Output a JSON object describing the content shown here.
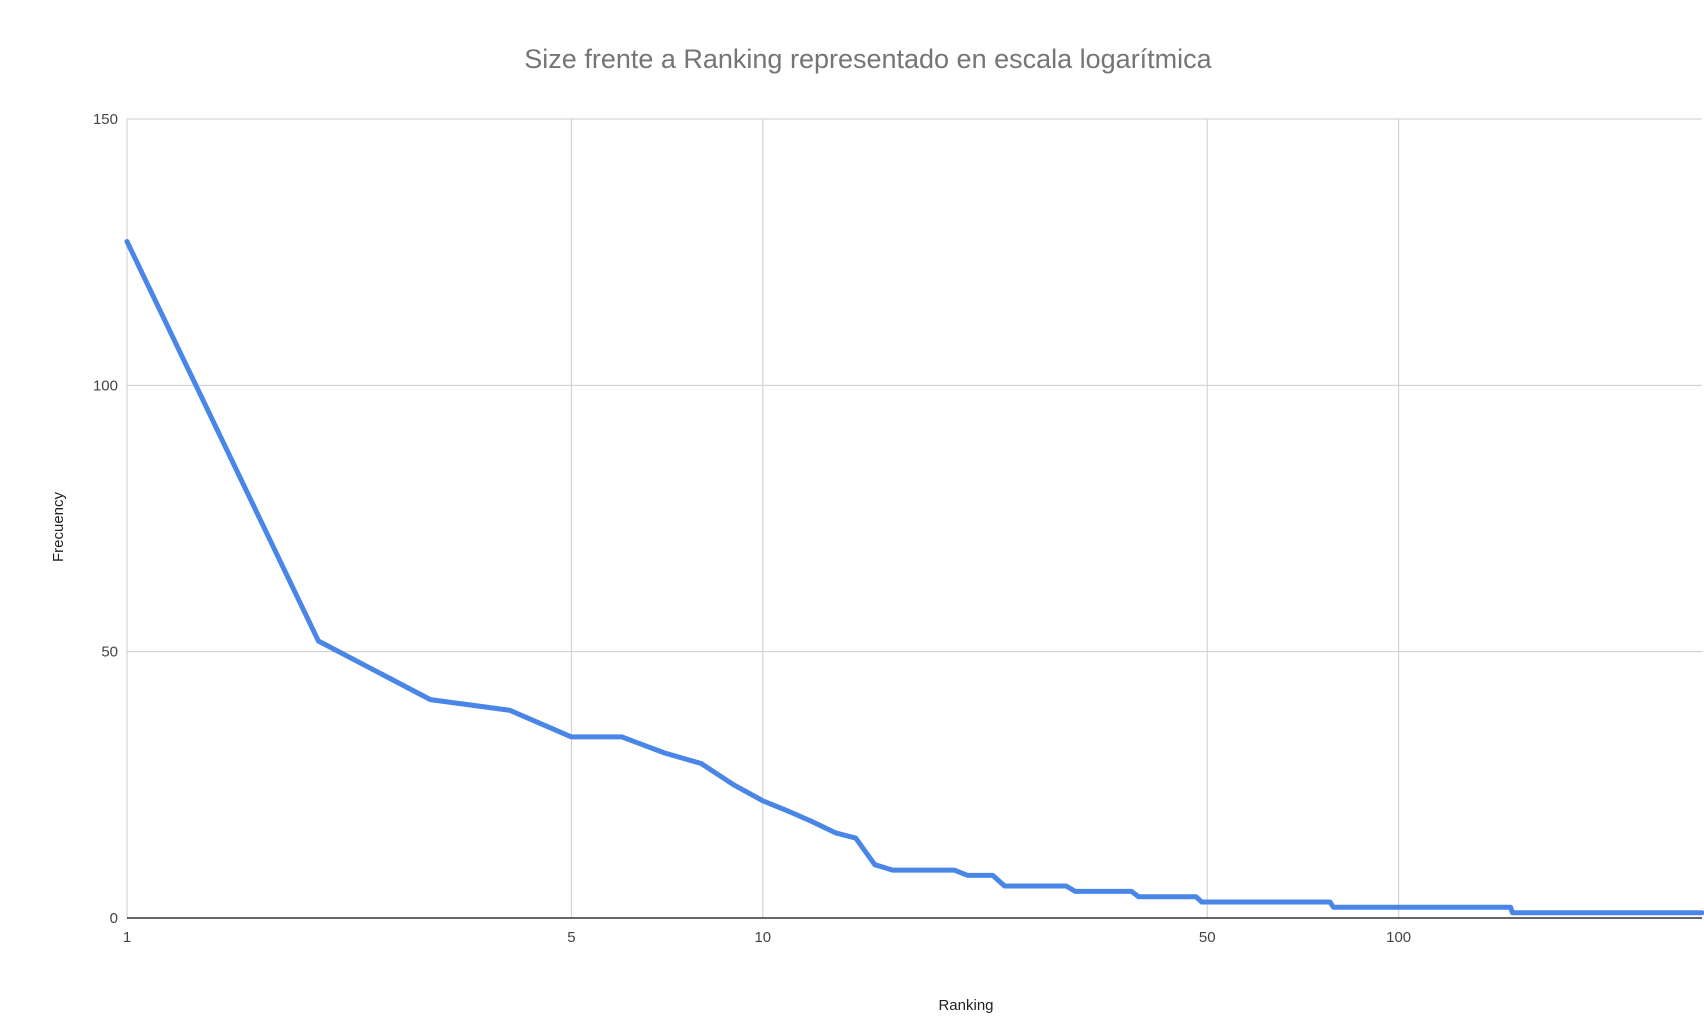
{
  "chart_data": {
    "type": "line",
    "title": "Size frente a Ranking representado en escala logarítmica",
    "xlabel": "Ranking",
    "ylabel": "Frecuency",
    "x_scale": "log",
    "xlim": [
      1,
      300
    ],
    "ylim": [
      0,
      150
    ],
    "x_ticks": [
      1,
      5,
      10,
      50,
      100
    ],
    "x_tick_labels": [
      "1",
      "5",
      "10",
      "50",
      "100"
    ],
    "y_ticks": [
      0,
      50,
      100,
      150
    ],
    "y_tick_labels": [
      "0",
      "50",
      "100",
      "150"
    ],
    "grid": true,
    "legend": "none",
    "line_color": "#4a86e8",
    "series": [
      {
        "x": [
          1,
          2,
          3,
          4,
          5,
          6,
          7,
          8,
          9,
          10,
          11,
          12,
          13,
          14,
          15,
          16,
          17,
          18,
          19,
          20,
          21,
          22,
          23,
          24,
          25,
          26,
          27,
          28,
          29,
          30,
          31,
          32,
          33,
          34,
          35,
          36,
          37,
          38,
          39,
          40,
          41,
          42,
          43,
          44,
          45,
          46,
          47,
          48,
          49,
          50,
          78,
          79,
          150,
          151,
          300
        ],
        "y": [
          127,
          52,
          41,
          39,
          34,
          34,
          31,
          29,
          25,
          22,
          20,
          18,
          16,
          15,
          10,
          9,
          9,
          9,
          9,
          9,
          8,
          8,
          8,
          6,
          6,
          6,
          6,
          6,
          6,
          6,
          5,
          5,
          5,
          5,
          5,
          5,
          5,
          5,
          4,
          4,
          4,
          4,
          4,
          4,
          4,
          4,
          4,
          4,
          3,
          3,
          3,
          2,
          2,
          1,
          1
        ]
      }
    ]
  }
}
